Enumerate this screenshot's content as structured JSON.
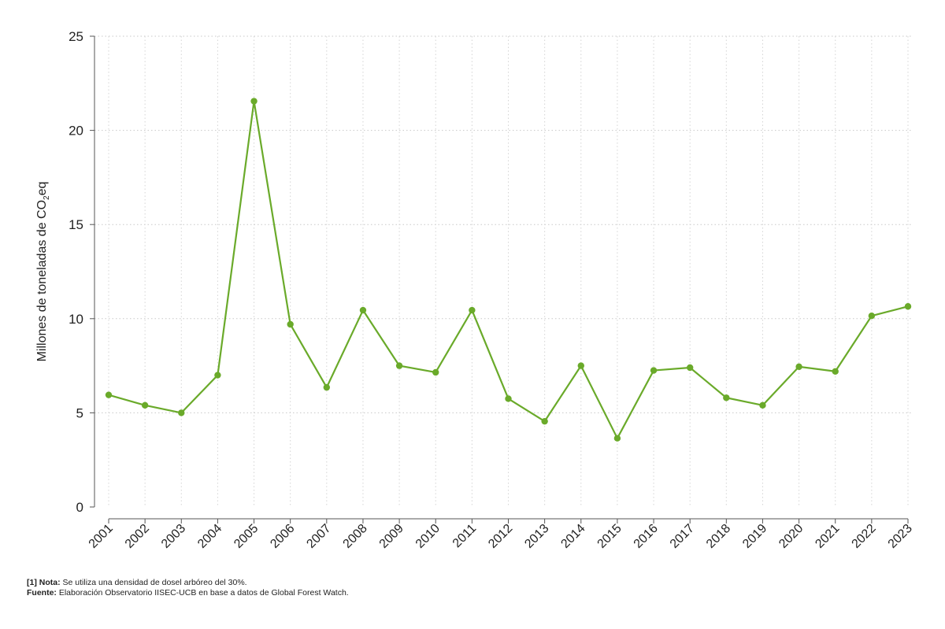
{
  "chart_data": {
    "type": "line",
    "xlabel": "",
    "ylabel_prefix": "Millones de toneladas de CO",
    "ylabel_subscript": "2",
    "ylabel_suffix": "eq",
    "ylim": [
      0,
      25
    ],
    "yticks": [
      0,
      5,
      10,
      15,
      20,
      25
    ],
    "grid": true,
    "line_color": "#6aaa2a",
    "categories": [
      "2001",
      "2002",
      "2003",
      "2004",
      "2005",
      "2006",
      "2007",
      "2008",
      "2009",
      "2010",
      "2011",
      "2012",
      "2013",
      "2014",
      "2015",
      "2016",
      "2017",
      "2018",
      "2019",
      "2020",
      "2021",
      "2022",
      "2023"
    ],
    "series": [
      {
        "values": [
          5.95,
          5.4,
          5.0,
          7.0,
          21.55,
          9.7,
          6.35,
          10.45,
          7.5,
          7.15,
          10.45,
          5.75,
          4.55,
          7.5,
          3.65,
          7.25,
          7.4,
          5.8,
          5.4,
          7.45,
          7.2,
          10.15,
          10.65
        ]
      }
    ]
  },
  "notes": {
    "note1_label": "[1] Nota:",
    "note1_text": " Se utiliza una densidad de dosel arbóreo del 30%.",
    "note2_label": "Fuente:",
    "note2_text": " Elaboración Observatorio IISEC-UCB en base a datos de Global Forest Watch."
  }
}
